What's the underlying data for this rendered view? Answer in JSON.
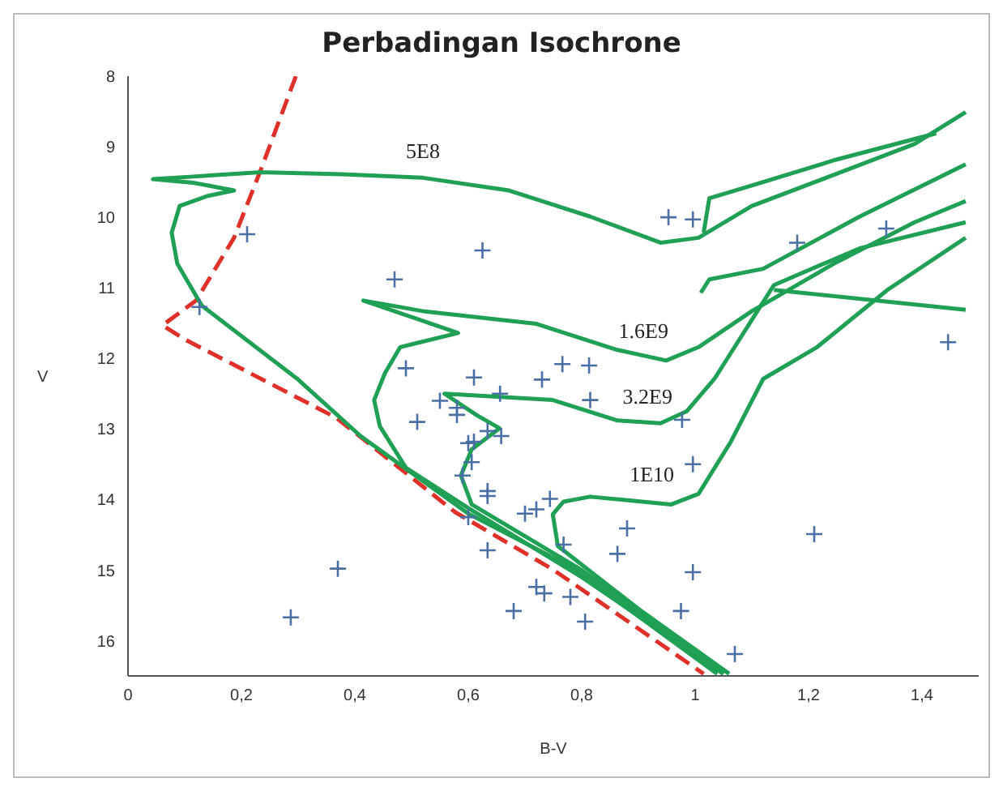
{
  "chart_data": {
    "type": "scatter",
    "title": "Perbadingan Isochrone",
    "xlabel": "B-V",
    "ylabel": "V",
    "xlim": [
      0,
      1.5
    ],
    "ylim": [
      16.5,
      8
    ],
    "xticks": [
      0,
      {
        "value": 0.2,
        "label": "0,2"
      },
      {
        "value": 0.4,
        "label": "0,4"
      },
      {
        "value": 0.6,
        "label": "0,6"
      },
      {
        "value": 0.8,
        "label": "0,8"
      },
      1,
      {
        "value": 1.2,
        "label": "1,2"
      },
      {
        "value": 1.4,
        "label": "1,4"
      }
    ],
    "yticks": [
      8,
      9,
      10,
      11,
      12,
      13,
      14,
      15,
      16
    ],
    "grid": false,
    "legend": false,
    "series": [
      {
        "type": "line",
        "color": "#e0302a",
        "line_style": "dashed",
        "marker": "none",
        "x": [
          0.296,
          0.234,
          0.187,
          0.12,
          0.061,
          0.1,
          0.367,
          0.577,
          0.749,
          1.015
        ],
        "values": [
          8,
          9.33,
          10.29,
          11.18,
          11.53,
          11.73,
          12.84,
          14.18,
          14.99,
          16.47
        ]
      },
      {
        "type": "line",
        "name": "5E8",
        "color": "#1fa055",
        "line_style": "solid",
        "marker": "none",
        "x": [
          1.039,
          0.78,
          0.6,
          0.41,
          0.3,
          0.13,
          0.087,
          0.077,
          0.091,
          0.139,
          0.187,
          0.115,
          0.044,
          0.12,
          0.234,
          0.377,
          0.52,
          0.672,
          0.815,
          0.939,
          1.006,
          1.1,
          1.244,
          1.387,
          1.477
        ],
        "values": [
          16.47,
          14.95,
          14.2,
          13.1,
          12.3,
          11.25,
          10.66,
          10.22,
          9.84,
          9.7,
          9.62,
          9.51,
          9.46,
          9.42,
          9.36,
          9.39,
          9.44,
          9.62,
          9.99,
          10.36,
          10.29,
          9.84,
          9.4,
          8.96,
          8.51
        ]
      },
      {
        "type": "line",
        "color": "#1fa055",
        "line_style": "solid",
        "marker": "none",
        "x": [
          1.015,
          1.025,
          1.1,
          1.25,
          1.425
        ],
        "values": [
          10.22,
          9.73,
          9.55,
          9.18,
          8.81
        ]
      },
      {
        "type": "line",
        "name": "1.6E9",
        "color": "#1fa055",
        "line_style": "solid",
        "marker": "none",
        "x": [
          1.05,
          0.8,
          0.6,
          0.49,
          0.444,
          0.434,
          0.453,
          0.48,
          0.582,
          0.415,
          0.52,
          0.72,
          0.863,
          0.949,
          1.006,
          1.1,
          1.244,
          1.387,
          1.477
        ],
        "values": [
          16.47,
          15.1,
          14.12,
          13.55,
          12.96,
          12.59,
          12.21,
          11.84,
          11.64,
          11.18,
          11.33,
          11.51,
          11.88,
          12.03,
          11.84,
          11.33,
          10.66,
          10.07,
          9.77
        ]
      },
      {
        "type": "line",
        "color": "#1fa055",
        "line_style": "solid",
        "marker": "none",
        "x": [
          1.01,
          1.025,
          1.12,
          1.29,
          1.477
        ],
        "values": [
          11.07,
          10.88,
          10.73,
          9.99,
          9.25
        ]
      },
      {
        "type": "line",
        "name": "3.2E9",
        "color": "#1fa055",
        "line_style": "solid",
        "marker": "none",
        "x": [
          1.05,
          0.8,
          0.606,
          0.587,
          0.606,
          0.655,
          0.614,
          0.558,
          0.749,
          0.863,
          0.939,
          0.985,
          1.034,
          1.139,
          1.29,
          1.477
        ],
        "values": [
          16.47,
          15.0,
          14.07,
          13.66,
          13.29,
          12.99,
          12.8,
          12.5,
          12.59,
          12.88,
          12.92,
          12.75,
          12.29,
          10.96,
          10.44,
          10.07
        ]
      },
      {
        "type": "line",
        "color": "#1fa055",
        "line_style": "solid",
        "marker": "none",
        "x": [
          1.139,
          1.477
        ],
        "values": [
          11.03,
          11.31
        ]
      },
      {
        "type": "line",
        "name": "1E10",
        "color": "#1fa055",
        "line_style": "solid",
        "marker": "none",
        "x": [
          1.06,
          0.9,
          0.758,
          0.749,
          0.768,
          0.815,
          0.958,
          1.006,
          1.063,
          1.12,
          1.215,
          1.339,
          1.477
        ],
        "values": [
          16.47,
          15.55,
          14.66,
          14.21,
          14.03,
          13.96,
          14.07,
          13.92,
          13.18,
          12.29,
          11.84,
          11.03,
          10.29
        ]
      },
      {
        "color": "#4a6fa5",
        "marker": "cross",
        "x": [
          0.21,
          0.625,
          0.47,
          0.126,
          0.49,
          0.61,
          0.73,
          0.656,
          0.55,
          0.58,
          0.58,
          0.51,
          0.634,
          0.658,
          0.6,
          0.61,
          0.606,
          0.59,
          0.634,
          0.634,
          0.7,
          0.72,
          0.744,
          0.6,
          0.634,
          0.37,
          0.287,
          0.72,
          0.734,
          0.68,
          0.815,
          0.977,
          0.996,
          0.88,
          0.863,
          0.768,
          1.21,
          0.996,
          0.78,
          0.806,
          0.975,
          1.07,
          0.953,
          0.996,
          1.18,
          1.337,
          1.446,
          0.766,
          0.813
        ],
        "values": [
          10.24,
          10.47,
          10.88,
          11.27,
          12.14,
          12.27,
          12.3,
          12.5,
          12.6,
          12.7,
          12.8,
          12.9,
          13.03,
          13.1,
          13.2,
          13.18,
          13.47,
          13.66,
          13.88,
          13.95,
          14.2,
          14.14,
          13.99,
          14.25,
          14.72,
          14.98,
          15.67,
          15.24,
          15.33,
          15.58,
          12.59,
          12.87,
          13.5,
          14.41,
          14.77,
          14.64,
          14.49,
          15.03,
          15.38,
          15.73,
          15.58,
          16.19,
          10.0,
          10.03,
          10.36,
          10.16,
          11.77,
          12.08,
          12.1
        ]
      }
    ]
  }
}
